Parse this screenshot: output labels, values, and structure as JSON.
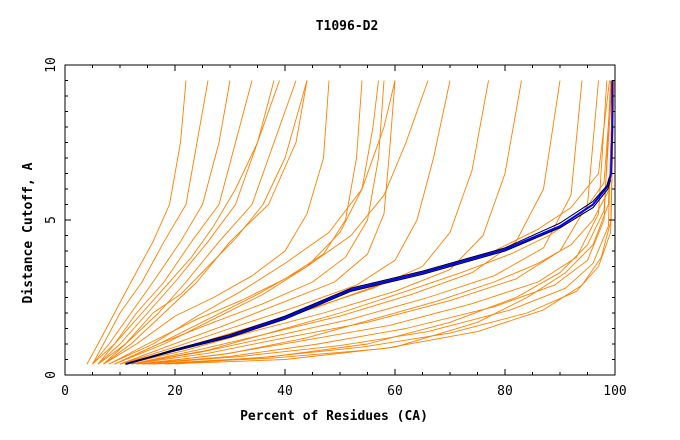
{
  "chart_data": {
    "type": "line",
    "title": "T1096-D2",
    "xlabel": "Percent of Residues (CA)",
    "ylabel": "Distance Cutoff, A",
    "xlim": [
      0,
      100
    ],
    "ylim": [
      0,
      10
    ],
    "xticks": [
      0,
      20,
      40,
      60,
      80,
      100
    ],
    "yticks": [
      0,
      5,
      10
    ],
    "grid": false,
    "legend": "none",
    "colors": {
      "background_model": "#ff8000",
      "highlight_model": "#0000ff",
      "highlight_model_dark": "#000033",
      "axes": "#000000"
    },
    "series": [
      {
        "color": "#0000ff",
        "x": [
          11,
          20,
          30,
          40,
          52,
          65,
          80,
          90,
          96,
          98.7,
          99.3,
          99.5,
          99.5
        ],
        "y": [
          0.35,
          0.8,
          1.25,
          1.85,
          2.75,
          3.3,
          4.05,
          4.8,
          5.5,
          6.1,
          6.5,
          8.0,
          9.5
        ]
      },
      {
        "color": "#000033",
        "x": [
          11,
          20,
          30,
          40,
          52,
          65,
          80,
          90,
          96,
          98.7,
          99.2
        ],
        "y": [
          0.35,
          0.78,
          1.22,
          1.8,
          2.7,
          3.25,
          4.0,
          4.75,
          5.4,
          6.0,
          6.3
        ]
      },
      {
        "color": "#000033",
        "x": [
          11,
          20,
          30,
          40,
          52,
          65,
          80,
          90,
          96,
          98.5,
          99.0
        ],
        "y": [
          0.35,
          0.83,
          1.3,
          1.9,
          2.8,
          3.35,
          4.1,
          4.9,
          5.6,
          6.1,
          6.4
        ]
      },
      {
        "color": "#ff8000",
        "x": [
          4,
          6,
          9,
          12,
          16,
          19,
          21,
          22
        ],
        "y": [
          0.35,
          1.0,
          2.0,
          3.0,
          4.3,
          5.5,
          7.5,
          9.5
        ]
      },
      {
        "color": "#ff8000",
        "x": [
          5,
          7,
          10,
          14,
          18,
          22,
          24,
          26
        ],
        "y": [
          0.35,
          1.0,
          2.0,
          3.0,
          4.3,
          5.5,
          7.5,
          9.5
        ]
      },
      {
        "color": "#ff8000",
        "x": [
          5,
          8,
          12,
          16,
          21,
          25,
          28,
          30
        ],
        "y": [
          0.35,
          1.0,
          2.0,
          3.0,
          4.3,
          5.5,
          7.5,
          9.5
        ]
      },
      {
        "color": "#ff8000",
        "x": [
          6,
          9,
          13,
          18,
          23,
          28,
          31,
          34
        ],
        "y": [
          0.35,
          1.0,
          2.0,
          3.0,
          4.3,
          5.5,
          7.5,
          9.5
        ]
      },
      {
        "color": "#ff8000",
        "x": [
          6,
          10,
          15,
          20,
          26,
          31,
          35,
          38
        ],
        "y": [
          0.35,
          1.0,
          2.0,
          3.0,
          4.3,
          5.5,
          7.5,
          9.5
        ]
      },
      {
        "color": "#ff8000",
        "x": [
          7,
          11,
          17,
          22,
          28,
          34,
          38,
          42
        ],
        "y": [
          0.35,
          1.0,
          2.0,
          3.0,
          4.3,
          5.5,
          7.5,
          9.5
        ]
      },
      {
        "color": "#ff8000",
        "x": [
          7,
          12,
          18,
          24,
          30,
          37,
          42,
          44
        ],
        "y": [
          0.35,
          1.0,
          2.0,
          3.0,
          4.3,
          5.5,
          7.5,
          9.5
        ]
      },
      {
        "color": "#ff8000",
        "x": [
          5,
          9,
          14,
          18,
          23,
          27,
          31,
          35,
          39
        ],
        "y": [
          0.35,
          1.0,
          2.0,
          2.8,
          3.8,
          4.8,
          6.0,
          7.5,
          9.5
        ]
      },
      {
        "color": "#ff8000",
        "x": [
          6,
          11,
          16,
          21,
          26,
          31,
          36,
          40,
          44
        ],
        "y": [
          0.35,
          1.0,
          2.0,
          2.6,
          3.5,
          4.4,
          5.5,
          7.0,
          9.5
        ]
      },
      {
        "color": "#ff8000",
        "x": [
          7,
          13,
          20,
          27,
          34,
          40,
          44,
          47,
          48
        ],
        "y": [
          0.35,
          1.0,
          1.9,
          2.5,
          3.2,
          4.0,
          5.2,
          7.0,
          9.5
        ]
      },
      {
        "color": "#ff8000",
        "x": [
          8,
          15,
          24,
          32,
          40,
          47,
          51,
          53,
          54
        ],
        "y": [
          0.35,
          1.0,
          1.8,
          2.4,
          3.1,
          3.9,
          5.0,
          7.0,
          9.5
        ]
      },
      {
        "color": "#ff8000",
        "x": [
          9,
          17,
          27,
          36,
          45,
          51,
          55,
          57,
          58
        ],
        "y": [
          0.35,
          1.0,
          1.7,
          2.3,
          3.0,
          3.8,
          5.0,
          7.0,
          9.5
        ]
      },
      {
        "color": "#ff8000",
        "x": [
          10,
          19,
          29,
          39,
          49,
          55,
          58,
          59,
          60
        ],
        "y": [
          0.35,
          0.95,
          1.6,
          2.3,
          3.0,
          3.9,
          5.2,
          7.2,
          9.5
        ]
      },
      {
        "color": "#ff8000",
        "x": [
          10,
          20,
          30,
          42,
          53,
          60,
          64,
          67,
          70
        ],
        "y": [
          0.35,
          0.9,
          1.5,
          2.2,
          2.9,
          3.7,
          5.0,
          7.0,
          9.5
        ]
      },
      {
        "color": "#ff8000",
        "x": [
          11,
          21,
          32,
          44,
          56,
          65,
          70,
          74,
          77
        ],
        "y": [
          0.35,
          0.85,
          1.45,
          2.1,
          2.8,
          3.5,
          4.6,
          6.6,
          9.5
        ]
      },
      {
        "color": "#ff8000",
        "x": [
          11,
          22,
          34,
          47,
          60,
          70,
          76,
          80,
          83
        ],
        "y": [
          0.35,
          0.8,
          1.4,
          2.0,
          2.7,
          3.4,
          4.5,
          6.5,
          9.5
        ]
      },
      {
        "color": "#ff8000",
        "x": [
          12,
          24,
          36,
          50,
          63,
          74,
          82,
          87,
          90
        ],
        "y": [
          0.35,
          0.8,
          1.3,
          1.9,
          2.6,
          3.3,
          4.3,
          6.0,
          9.5
        ]
      },
      {
        "color": "#ff8000",
        "x": [
          12,
          25,
          38,
          52,
          66,
          78,
          87,
          92,
          94
        ],
        "y": [
          0.35,
          0.75,
          1.25,
          1.8,
          2.5,
          3.2,
          4.1,
          5.8,
          9.5
        ]
      },
      {
        "color": "#ff8000",
        "x": [
          12,
          26,
          40,
          55,
          70,
          82,
          90,
          95,
          97
        ],
        "y": [
          0.35,
          0.7,
          1.2,
          1.7,
          2.4,
          3.1,
          4.0,
          5.5,
          9.5
        ]
      },
      {
        "color": "#ff8000",
        "x": [
          13,
          28,
          43,
          59,
          74,
          86,
          93,
          97,
          98.5
        ],
        "y": [
          0.35,
          0.65,
          1.1,
          1.6,
          2.3,
          3.0,
          3.8,
          5.2,
          9.5
        ]
      },
      {
        "color": "#ff8000",
        "x": [
          13,
          30,
          46,
          62,
          78,
          89,
          95,
          98,
          99.2
        ],
        "y": [
          0.35,
          0.6,
          1.0,
          1.5,
          2.2,
          2.9,
          3.7,
          5.0,
          9.5
        ]
      },
      {
        "color": "#ff8000",
        "x": [
          14,
          32,
          50,
          66,
          81,
          91,
          96,
          98.8,
          99.6
        ],
        "y": [
          0.35,
          0.6,
          0.95,
          1.4,
          2.1,
          2.8,
          3.6,
          4.8,
          9.5
        ]
      },
      {
        "color": "#ff8000",
        "x": [
          15,
          35,
          54,
          70,
          84,
          93,
          97,
          99.2,
          99.8
        ],
        "y": [
          0.35,
          0.55,
          0.9,
          1.35,
          2.0,
          2.7,
          3.5,
          4.6,
          9.5
        ]
      },
      {
        "color": "#ff8000",
        "x": [
          16,
          38,
          58,
          75,
          87,
          94,
          97.5,
          99.3,
          99.8
        ],
        "y": [
          0.35,
          0.55,
          0.85,
          1.4,
          2.1,
          2.9,
          3.8,
          5.0,
          9.5
        ]
      },
      {
        "color": "#ff8000",
        "x": [
          18,
          40,
          60,
          75,
          84,
          91,
          96,
          98.8,
          99.7
        ],
        "y": [
          0.35,
          0.5,
          0.9,
          1.7,
          2.5,
          3.3,
          4.2,
          5.5,
          9.5
        ]
      },
      {
        "color": "#ff8000",
        "x": [
          14,
          30,
          44,
          56,
          68,
          78,
          86,
          92,
          96,
          99,
          99.6
        ],
        "y": [
          0.35,
          0.7,
          1.2,
          1.8,
          2.4,
          3.0,
          3.6,
          4.2,
          5.0,
          6.0,
          9.5
        ]
      },
      {
        "color": "#ff8000",
        "x": [
          12,
          26,
          38,
          50,
          62,
          72,
          81,
          88,
          94,
          98,
          99.4
        ],
        "y": [
          0.35,
          0.8,
          1.4,
          2.0,
          2.7,
          3.3,
          3.9,
          4.5,
          5.2,
          6.2,
          9.5
        ]
      },
      {
        "color": "#ff8000",
        "x": [
          10,
          22,
          34,
          46,
          57,
          68,
          78,
          86,
          92,
          97,
          99.0
        ],
        "y": [
          0.35,
          0.9,
          1.5,
          2.2,
          2.9,
          3.5,
          4.0,
          4.7,
          5.4,
          6.5,
          9.5
        ]
      },
      {
        "color": "#ff8000",
        "x": [
          20,
          38,
          55,
          70,
          82,
          90,
          95,
          98,
          99.5
        ],
        "y": [
          0.35,
          0.6,
          1.0,
          1.7,
          2.5,
          3.3,
          4.2,
          5.3,
          9.5
        ]
      },
      {
        "color": "#ff8000",
        "x": [
          8,
          16,
          24,
          32,
          40,
          48,
          54,
          58,
          60
        ],
        "y": [
          0.35,
          1.0,
          1.9,
          2.7,
          3.6,
          4.6,
          6.0,
          8.0,
          9.5
        ]
      },
      {
        "color": "#ff8000",
        "x": [
          9,
          18,
          27,
          36,
          44,
          50,
          54,
          56,
          57
        ],
        "y": [
          0.35,
          1.0,
          1.8,
          2.6,
          3.5,
          4.6,
          6.0,
          8.0,
          9.5
        ]
      },
      {
        "color": "#ff8000",
        "x": [
          9,
          17,
          26,
          35,
          44,
          52,
          58,
          62,
          66
        ],
        "y": [
          0.35,
          1.0,
          1.8,
          2.6,
          3.5,
          4.5,
          5.8,
          7.5,
          9.5
        ]
      }
    ]
  }
}
